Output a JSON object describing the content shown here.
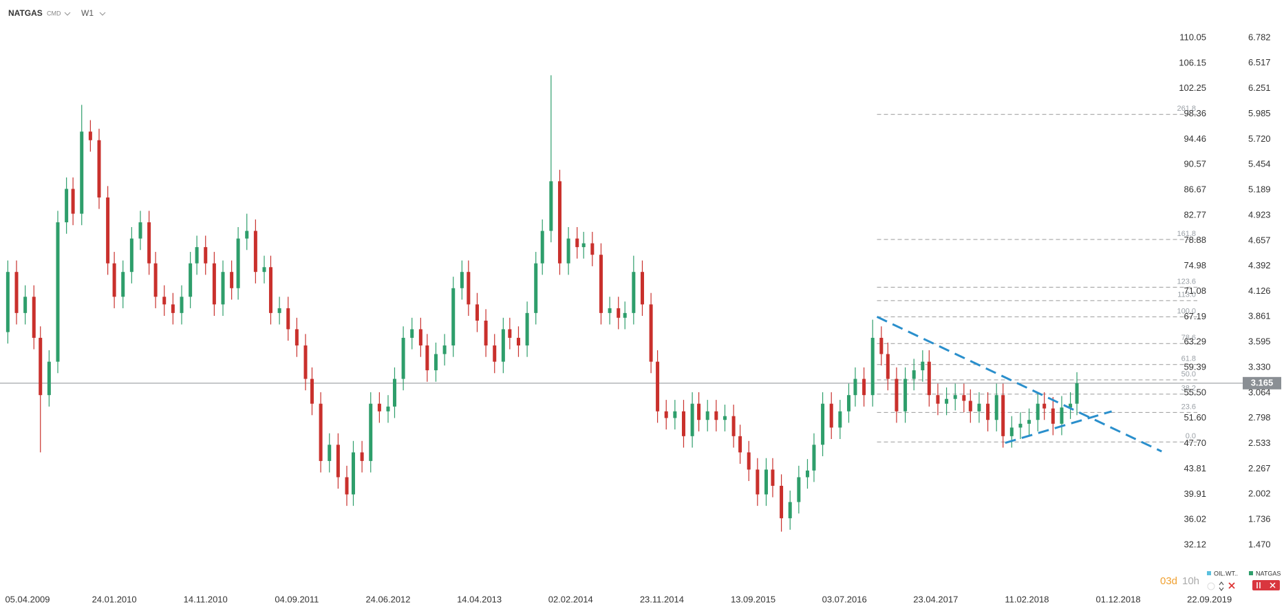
{
  "chart_data": {
    "type": "candlestick",
    "title": "NATGAS",
    "market": "CMD",
    "interval": "W1",
    "countdown_days": "03d",
    "countdown_hours": "10h",
    "legend": [
      {
        "name": "OIL.WT..",
        "color": "#5bc0de"
      },
      {
        "name": "NATGAS",
        "color": "#2e9e6b"
      }
    ],
    "up_color": "#2e9e6b",
    "down_color": "#c9302c",
    "xlim": [
      -10.6,
      559.4
    ],
    "xticks": [
      {
        "value": 0,
        "label": "05.04.2009"
      },
      {
        "value": 42,
        "label": "24.01.2010"
      },
      {
        "value": 84,
        "label": "14.11.2010"
      },
      {
        "value": 126,
        "label": "04.09.2011"
      },
      {
        "value": 168,
        "label": "24.06.2012"
      },
      {
        "value": 210,
        "label": "14.04.2013"
      },
      {
        "value": 252,
        "label": "02.02.2014"
      },
      {
        "value": 294,
        "label": "23.11.2014"
      },
      {
        "value": 336,
        "label": "13.09.2015"
      },
      {
        "value": 378,
        "label": "03.07.2016"
      },
      {
        "value": 420,
        "label": "23.04.2017"
      },
      {
        "value": 462,
        "label": "11.02.2018"
      },
      {
        "value": 504,
        "label": "01.12.2018"
      },
      {
        "value": 546,
        "label": "22.09.2019"
      }
    ],
    "ylim": [
      1.47,
      6.782
    ],
    "yticks": [
      6.782,
      6.517,
      6.251,
      5.985,
      {
        "value": 5.72,
        "label": "5.720"
      },
      5.454,
      5.189,
      4.923,
      4.657,
      4.392,
      4.126,
      3.861,
      3.595,
      {
        "value": 3.33,
        "label": "3.330"
      },
      3.064,
      2.798,
      2.533,
      2.267,
      2.002,
      1.736,
      {
        "value": 1.47,
        "label": "1.470"
      }
    ],
    "y2lim": [
      32.12,
      110.05
    ],
    "y2ticks": [
      110.05,
      106.15,
      102.25,
      98.36,
      94.46,
      90.57,
      86.67,
      82.77,
      78.88,
      74.98,
      71.08,
      67.19,
      63.29,
      59.39,
      {
        "value": 55.5,
        "label": "55.50"
      },
      {
        "value": 51.6,
        "label": "51.60"
      },
      {
        "value": 47.7,
        "label": "47.70"
      },
      43.81,
      39.91,
      36.02,
      32.12
    ],
    "last_price": 3.165,
    "x": [
      -7,
      -3,
      1,
      5,
      8,
      12,
      16,
      20,
      23,
      27,
      31,
      35,
      39,
      42,
      46,
      50,
      54,
      58,
      61,
      65,
      69,
      73,
      77,
      80,
      84,
      88,
      92,
      96,
      99,
      103,
      107,
      111,
      114,
      118,
      122,
      126,
      130,
      133,
      137,
      141,
      145,
      149,
      152,
      156,
      160,
      164,
      168,
      171,
      175,
      179,
      183,
      186,
      190,
      194,
      198,
      202,
      205,
      209,
      213,
      217,
      221,
      224,
      228,
      232,
      236,
      239,
      243,
      247,
      251,
      255,
      258,
      262,
      266,
      270,
      274,
      277,
      281,
      285,
      289,
      292,
      296,
      300,
      304,
      308,
      311,
      315,
      319,
      323,
      327,
      330,
      334,
      338,
      342,
      345,
      349,
      353,
      357,
      361,
      364,
      368,
      372,
      376,
      380,
      383,
      387,
      391,
      395,
      398,
      402,
      406,
      410,
      414,
      417,
      421,
      425,
      429,
      433,
      436,
      440,
      444,
      448,
      451,
      455,
      459,
      463,
      467,
      470,
      474,
      478,
      482,
      485
    ],
    "open": [
      3.7,
      4.33,
      3.9,
      4.07,
      3.64,
      3.04,
      3.39,
      4.85,
      5.2,
      4.94,
      5.8,
      5.71,
      5.11,
      4.42,
      4.07,
      4.33,
      4.68,
      4.85,
      4.42,
      4.07,
      3.99,
      3.9,
      4.07,
      4.42,
      4.59,
      4.42,
      3.99,
      4.33,
      4.16,
      4.68,
      4.76,
      4.33,
      4.38,
      3.9,
      3.95,
      3.73,
      3.56,
      3.21,
      2.95,
      2.35,
      2.52,
      2.18,
      2.0,
      2.44,
      2.35,
      2.95,
      2.87,
      2.92,
      3.21,
      3.64,
      3.73,
      3.56,
      3.3,
      3.47,
      3.56,
      4.16,
      4.33,
      3.99,
      3.82,
      3.56,
      3.39,
      3.73,
      3.64,
      3.56,
      3.9,
      4.42,
      4.76,
      5.28,
      4.42,
      4.68,
      4.59,
      4.63,
      4.51,
      3.9,
      3.95,
      3.85,
      3.9,
      4.33,
      3.99,
      3.39,
      2.87,
      2.8,
      2.87,
      2.61,
      2.95,
      2.78,
      2.87,
      2.78,
      2.82,
      2.61,
      2.44,
      2.26,
      2.0,
      2.26,
      2.09,
      1.75,
      1.92,
      2.18,
      2.25,
      2.52,
      2.95,
      2.7,
      2.87,
      3.04,
      3.21,
      3.04,
      3.64,
      3.47,
      3.21,
      2.87,
      3.21,
      3.3,
      3.39,
      3.04,
      2.95,
      3.0,
      3.04,
      2.98,
      2.87,
      2.95,
      2.78,
      3.04,
      2.61,
      2.7,
      2.74,
      2.78,
      2.95,
      2.9,
      2.74,
      2.91,
      2.95
    ],
    "high": [
      4.45,
      4.45,
      4.19,
      4.19,
      3.76,
      3.51,
      4.97,
      5.32,
      5.32,
      6.08,
      5.92,
      5.83,
      5.23,
      4.54,
      4.45,
      4.8,
      4.97,
      4.97,
      4.54,
      4.19,
      4.11,
      4.19,
      4.54,
      4.71,
      4.71,
      4.54,
      4.45,
      4.45,
      4.8,
      4.94,
      4.88,
      4.5,
      4.5,
      4.07,
      4.07,
      3.85,
      3.68,
      3.33,
      3.07,
      2.64,
      2.64,
      2.3,
      2.56,
      2.56,
      3.07,
      3.07,
      3.04,
      3.33,
      3.76,
      3.85,
      3.85,
      3.68,
      3.59,
      3.68,
      4.28,
      4.45,
      4.45,
      4.11,
      3.94,
      3.68,
      3.85,
      3.85,
      3.76,
      4.02,
      4.54,
      4.88,
      6.39,
      5.4,
      4.8,
      4.8,
      4.75,
      4.75,
      4.63,
      4.07,
      4.07,
      4.02,
      4.5,
      4.45,
      4.11,
      3.51,
      2.99,
      2.99,
      2.99,
      3.07,
      3.07,
      2.99,
      2.99,
      2.94,
      2.94,
      2.73,
      2.56,
      2.38,
      2.38,
      2.38,
      2.21,
      2.04,
      2.3,
      2.37,
      2.64,
      3.07,
      3.07,
      2.99,
      3.16,
      3.33,
      3.33,
      3.83,
      3.76,
      3.59,
      3.33,
      3.33,
      3.42,
      3.51,
      3.51,
      3.16,
      3.12,
      3.16,
      3.16,
      3.1,
      3.07,
      3.07,
      3.16,
      3.16,
      2.82,
      2.86,
      2.9,
      3.07,
      3.07,
      3.02,
      3.03,
      3.07,
      3.28
    ],
    "low": [
      3.58,
      3.78,
      3.78,
      3.52,
      2.44,
      2.92,
      3.27,
      4.73,
      4.82,
      4.82,
      5.59,
      4.99,
      4.3,
      3.95,
      3.95,
      4.21,
      4.56,
      4.3,
      3.95,
      3.87,
      3.78,
      3.78,
      3.95,
      4.3,
      4.3,
      3.87,
      3.87,
      4.04,
      4.04,
      4.56,
      4.21,
      4.21,
      3.78,
      3.78,
      3.61,
      3.44,
      3.09,
      2.83,
      2.23,
      2.23,
      2.06,
      1.88,
      1.88,
      2.23,
      2.23,
      2.75,
      2.75,
      2.8,
      3.09,
      3.52,
      3.44,
      3.18,
      3.18,
      3.35,
      3.44,
      4.04,
      3.87,
      3.7,
      3.44,
      3.27,
      3.27,
      3.52,
      3.44,
      3.44,
      3.78,
      4.3,
      4.64,
      4.3,
      4.3,
      4.47,
      4.47,
      4.39,
      3.78,
      3.78,
      3.73,
      3.73,
      3.78,
      3.87,
      3.27,
      2.75,
      2.68,
      2.68,
      2.49,
      2.49,
      2.66,
      2.66,
      2.66,
      2.66,
      2.49,
      2.32,
      2.14,
      1.88,
      1.88,
      1.97,
      1.61,
      1.63,
      1.8,
      2.06,
      2.13,
      2.4,
      2.58,
      2.58,
      2.75,
      2.92,
      2.92,
      2.92,
      3.35,
      3.09,
      2.75,
      2.75,
      3.09,
      3.18,
      2.92,
      2.83,
      2.83,
      2.88,
      2.86,
      2.75,
      2.75,
      2.66,
      2.66,
      2.49,
      2.49,
      2.58,
      2.62,
      2.66,
      2.78,
      2.62,
      2.62,
      2.79,
      2.83
    ],
    "close": [
      4.33,
      3.9,
      4.07,
      3.64,
      3.04,
      3.39,
      4.85,
      5.2,
      4.94,
      5.8,
      5.71,
      5.11,
      4.42,
      4.07,
      4.33,
      4.68,
      4.85,
      4.42,
      4.07,
      3.99,
      3.9,
      4.07,
      4.42,
      4.59,
      4.42,
      3.99,
      4.33,
      4.16,
      4.68,
      4.76,
      4.33,
      4.38,
      3.9,
      3.95,
      3.73,
      3.56,
      3.21,
      2.95,
      2.35,
      2.52,
      2.18,
      2.0,
      2.44,
      2.35,
      2.95,
      2.87,
      2.92,
      3.21,
      3.64,
      3.73,
      3.56,
      3.3,
      3.47,
      3.56,
      4.16,
      4.33,
      3.99,
      3.82,
      3.56,
      3.39,
      3.73,
      3.64,
      3.56,
      3.9,
      4.42,
      4.76,
      5.28,
      4.42,
      4.68,
      4.59,
      4.63,
      4.51,
      3.9,
      3.95,
      3.85,
      3.9,
      4.33,
      3.99,
      3.39,
      2.87,
      2.8,
      2.87,
      2.61,
      2.95,
      2.78,
      2.87,
      2.78,
      2.82,
      2.61,
      2.44,
      2.26,
      2.0,
      2.26,
      2.09,
      1.75,
      1.92,
      2.18,
      2.25,
      2.52,
      2.95,
      2.7,
      2.87,
      3.04,
      3.21,
      3.04,
      3.64,
      3.47,
      3.21,
      2.87,
      3.21,
      3.3,
      3.39,
      3.04,
      2.95,
      3.0,
      3.04,
      2.98,
      2.87,
      2.95,
      2.78,
      3.04,
      2.61,
      2.7,
      2.74,
      2.78,
      2.95,
      2.9,
      2.74,
      2.91,
      2.95,
      3.165
    ],
    "fib_start_x": 393,
    "fib_labels": [
      "261.8",
      "161.8",
      "123.6",
      "113.0",
      "100.0",
      "78.6",
      "61.8",
      "50.0",
      "38.2",
      "23.6",
      "0.0"
    ],
    "fib_prices": [
      5.98,
      4.67,
      4.17,
      4.03,
      3.86,
      3.58,
      3.36,
      3.2,
      3.05,
      2.858,
      2.549
    ],
    "trendline_color": "#2a8fcc",
    "trendlines": [
      {
        "x": [
          393,
          524
        ],
        "y": [
          3.86,
          2.45
        ]
      },
      {
        "x": [
          452,
          501
        ],
        "y": [
          2.54,
          2.87
        ]
      }
    ]
  }
}
